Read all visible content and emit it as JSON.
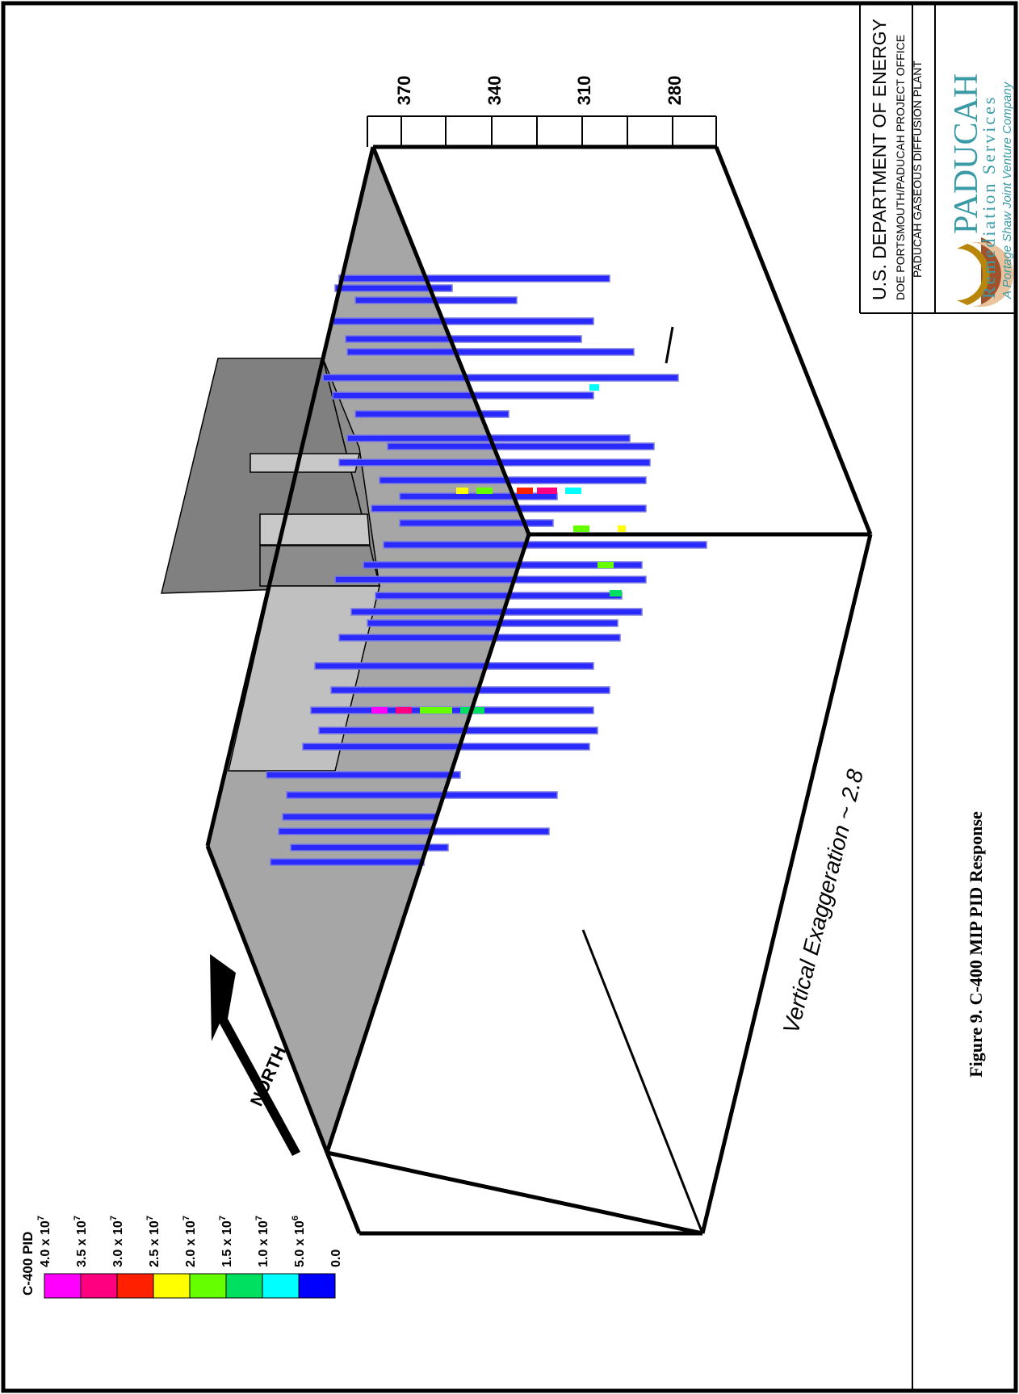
{
  "figure": {
    "caption": "Figure 9. C-400 MIP PID Response"
  },
  "legend": {
    "title": "C-400 PID",
    "labels": [
      "4.0 x 10",
      "3.5 x 10",
      "3.0 x 10",
      "2.5 x 10",
      "2.0 x 10",
      "1.5 x 10",
      "1.0 x 10",
      "5.0 x 10",
      "0.0"
    ],
    "exponents": [
      "7",
      "7",
      "7",
      "7",
      "7",
      "7",
      "7",
      "6",
      ""
    ],
    "colors": [
      "#ff00ff",
      "#ff0080",
      "#ff2000",
      "#ffff00",
      "#66ff00",
      "#00e060",
      "#00ffff",
      "#0000ff"
    ]
  },
  "elevation_axis": {
    "labels": [
      "370",
      "340",
      "310",
      "280"
    ]
  },
  "north_label": "NORTH",
  "vertical_exaggeration": "Vertical Exaggeration ~ 2.8",
  "title_block": {
    "agency": "U.S. DEPARTMENT OF ENERGY",
    "office": "DOE PORTSMOUTH/PADUCAH PROJECT OFFICE",
    "plant": "PADUCAH GASEOUS DIFFUSION PLANT",
    "company": "PADUCAH",
    "company_sub": "Remediation Services",
    "company_tag": "A Portage Shaw Joint Venture Company"
  },
  "colors": {
    "box_gray": "#a6a6a6",
    "building_dark": "#808080",
    "building_light": "#c0c0c0",
    "boring_blue": "#2020ff"
  }
}
